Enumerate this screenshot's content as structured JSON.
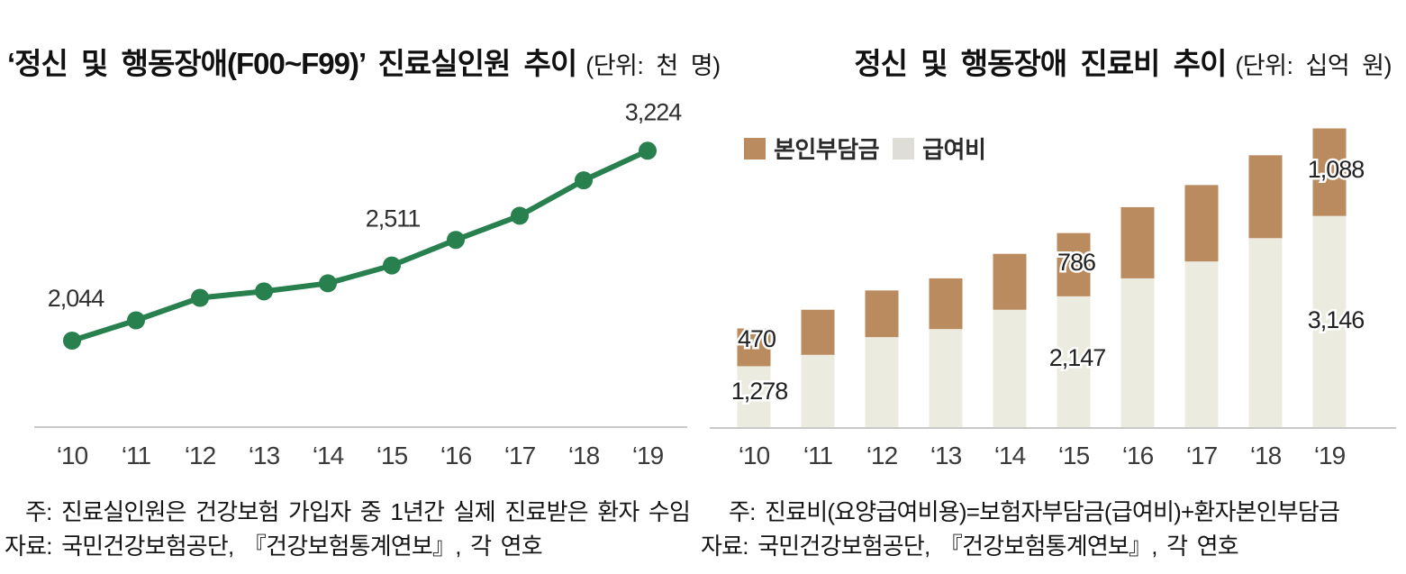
{
  "charts": {
    "left": {
      "title": "‘정신 및 행동장애(F00~F99)’ 진료실인원 추이",
      "unit": "(단위: 천 명)",
      "notes": [
        "주: 진료실인원은 건강보험 가입자 중 1년간 실제 진료받은 환자 수임",
        "자료: 국민건강보험공단, 『건강보험통계연보』, 각 연호"
      ]
    },
    "right": {
      "title": "정신 및 행동장애 진료비 추이",
      "unit": "(단위: 십억 원)",
      "legend": [
        {
          "label": "본인부담금",
          "color": "#B98B5E"
        },
        {
          "label": "급여비",
          "color": "#DFDED6"
        }
      ],
      "notes": [
        "주: 진료비(요양급여비용)=보험자부담금(급여비)+환자본인부담금",
        "자료: 국민건강보험공단, 『건강보험통계연보』, 각 연호"
      ]
    }
  },
  "chart_data": [
    {
      "type": "line",
      "title": "‘정신 및 행동장애(F00~F99)’ 진료실인원 추이",
      "ylabel": "진료실인원 (천 명)",
      "categories": [
        "‘10",
        "‘11",
        "‘12",
        "‘13",
        "‘14",
        "‘15",
        "‘16",
        "‘17",
        "‘18",
        "‘19"
      ],
      "values": [
        2044,
        2170,
        2310,
        2350,
        2400,
        2511,
        2670,
        2820,
        3040,
        3224
      ],
      "data_labels": [
        {
          "index": 0,
          "text": "2,044"
        },
        {
          "index": 5,
          "text": "2,511"
        },
        {
          "index": 9,
          "text": "3,224"
        }
      ],
      "line_color": "#27804E",
      "axis_color": "#C9C9C9",
      "grid": false,
      "legend_position": "none"
    },
    {
      "type": "bar",
      "subtype": "stacked",
      "title": "정신 및 행동장애 진료비 추이",
      "ylabel": "진료비 (십억 원)",
      "categories": [
        "‘10",
        "‘11",
        "‘12",
        "‘13",
        "‘14",
        "‘15",
        "‘16",
        "‘17",
        "‘18",
        "‘19"
      ],
      "series": [
        {
          "name": "급여비",
          "color": "#ECEBE0",
          "values": [
            1278,
            1420,
            1640,
            1740,
            1980,
            2147,
            2370,
            2580,
            2870,
            3146
          ]
        },
        {
          "name": "본인부담금",
          "color": "#B98B5E",
          "values": [
            470,
            560,
            580,
            630,
            695,
            786,
            885,
            950,
            1030,
            1088
          ]
        }
      ],
      "data_labels": [
        {
          "series": "본인부담금",
          "index": 0,
          "text": "470"
        },
        {
          "series": "급여비",
          "index": 0,
          "text": "1,278"
        },
        {
          "series": "본인부담금",
          "index": 5,
          "text": "786"
        },
        {
          "series": "급여비",
          "index": 5,
          "text": "2,147"
        },
        {
          "series": "본인부담금",
          "index": 9,
          "text": "1,088"
        },
        {
          "series": "급여비",
          "index": 9,
          "text": "3,146"
        }
      ],
      "axis_color": "#C9C9C9",
      "grid": false,
      "legend_position": "top-left"
    }
  ]
}
